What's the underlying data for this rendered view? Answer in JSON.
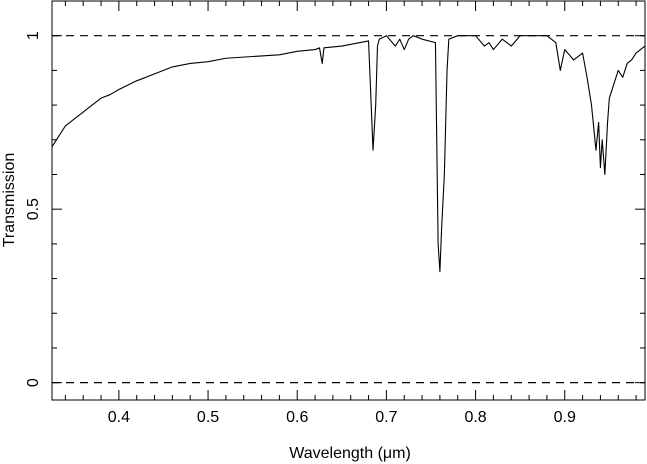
{
  "chart_data": {
    "type": "line",
    "title": "",
    "xlabel": "Wavelength (μm)",
    "ylabel": "Transmission",
    "xlim": [
      0.325,
      0.99
    ],
    "ylim": [
      -0.05,
      1.1
    ],
    "grid": false,
    "legend": "none",
    "colors": {
      "line": "#000000",
      "reference": "#000000",
      "axes": "#000000"
    },
    "x_ticks": [
      {
        "value": 0.4,
        "label": "0.4"
      },
      {
        "value": 0.5,
        "label": "0.5"
      },
      {
        "value": 0.6,
        "label": "0.6"
      },
      {
        "value": 0.7,
        "label": "0.7"
      },
      {
        "value": 0.8,
        "label": "0.8"
      },
      {
        "value": 0.9,
        "label": "0.9"
      }
    ],
    "y_ticks": [
      {
        "value": 0,
        "label": "0"
      },
      {
        "value": 0.5,
        "label": "0.5"
      },
      {
        "value": 1,
        "label": "1"
      }
    ],
    "reference_lines": [
      {
        "y": 1,
        "style": "dashed"
      },
      {
        "y": 0,
        "style": "dashed"
      }
    ],
    "series": [
      {
        "x": [
          0.325,
          0.33,
          0.34,
          0.35,
          0.36,
          0.37,
          0.38,
          0.39,
          0.4,
          0.42,
          0.44,
          0.46,
          0.48,
          0.5,
          0.52,
          0.55,
          0.58,
          0.6,
          0.62,
          0.625,
          0.628,
          0.63,
          0.65,
          0.68,
          0.685,
          0.688,
          0.69,
          0.692,
          0.7,
          0.71,
          0.715,
          0.72,
          0.725,
          0.73,
          0.74,
          0.755,
          0.758,
          0.76,
          0.762,
          0.765,
          0.768,
          0.77,
          0.78,
          0.8,
          0.81,
          0.815,
          0.82,
          0.83,
          0.84,
          0.85,
          0.88,
          0.89,
          0.895,
          0.9,
          0.91,
          0.92,
          0.925,
          0.93,
          0.935,
          0.938,
          0.94,
          0.942,
          0.945,
          0.948,
          0.95,
          0.955,
          0.96,
          0.965,
          0.97,
          0.975,
          0.98,
          0.985,
          0.99
        ],
        "y": [
          0.68,
          0.7,
          0.74,
          0.76,
          0.78,
          0.8,
          0.82,
          0.83,
          0.845,
          0.87,
          0.89,
          0.91,
          0.92,
          0.925,
          0.935,
          0.94,
          0.945,
          0.955,
          0.96,
          0.965,
          0.92,
          0.965,
          0.97,
          0.985,
          0.67,
          0.8,
          0.97,
          0.99,
          1.0,
          0.97,
          0.99,
          0.96,
          0.99,
          1.0,
          0.99,
          0.98,
          0.4,
          0.32,
          0.45,
          0.6,
          0.9,
          0.99,
          1.0,
          1.0,
          0.97,
          0.98,
          0.96,
          0.99,
          0.97,
          1.0,
          1.0,
          0.98,
          0.9,
          0.96,
          0.93,
          0.95,
          0.88,
          0.8,
          0.67,
          0.75,
          0.62,
          0.7,
          0.6,
          0.75,
          0.82,
          0.86,
          0.9,
          0.88,
          0.92,
          0.93,
          0.95,
          0.96,
          0.97
        ]
      }
    ]
  }
}
